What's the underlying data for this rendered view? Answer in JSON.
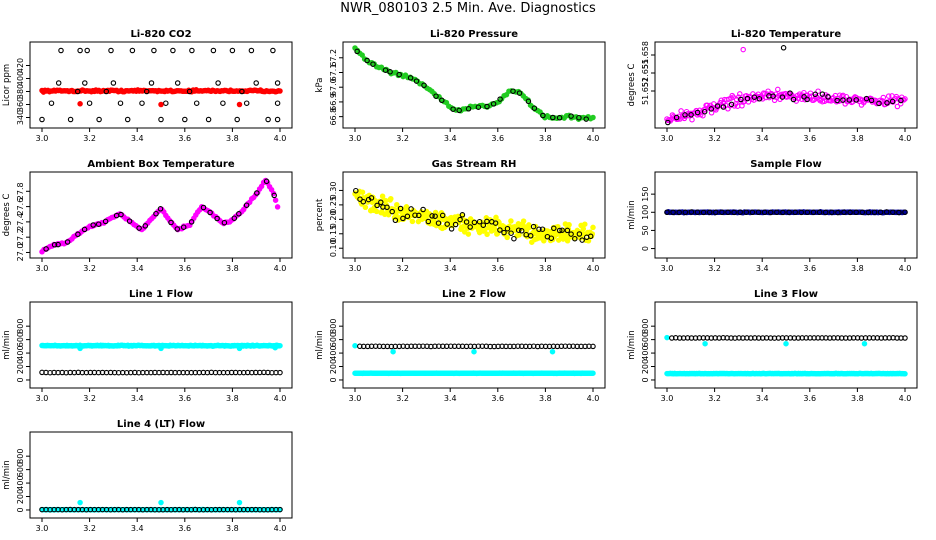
{
  "page": {
    "title": "NWR_080103  2.5 Min. Ave. Diagnostics"
  },
  "colors": {
    "red": "#ff0000",
    "green": "#22cc22",
    "magenta": "#ff00ff",
    "yellow": "#ffff00",
    "navy": "#000099",
    "cyan": "#00ffff",
    "black": "#000000"
  },
  "chart_data": [
    {
      "id": "co2",
      "type": "scatter",
      "title": "Li-820 CO2",
      "ylabel": "Licor ppm",
      "xlim": [
        3.0,
        4.0
      ],
      "ylim": [
        330,
        450
      ],
      "xticks": [
        "3.0",
        "3.2",
        "3.4",
        "3.6",
        "3.8",
        "4.0"
      ],
      "yticks": [
        "340",
        "360",
        "380",
        "400",
        "420"
      ],
      "series": [
        {
          "color": "red",
          "filled": true,
          "band": {
            "x": [
              3.0,
              4.0
            ],
            "y": 381,
            "spread": 2,
            "n": 160
          }
        },
        {
          "color": "black",
          "filled": false,
          "points": [
            [
              3.0,
              337
            ],
            [
              3.04,
              362
            ],
            [
              3.08,
              443
            ],
            [
              3.07,
              393
            ],
            [
              3.12,
              337
            ],
            [
              3.15,
              380
            ],
            [
              3.16,
              443
            ],
            [
              3.18,
              393
            ],
            [
              3.19,
              443
            ],
            [
              3.2,
              362
            ],
            [
              3.24,
              337
            ],
            [
              3.27,
              380
            ],
            [
              3.29,
              443
            ],
            [
              3.3,
              393
            ],
            [
              3.33,
              362
            ],
            [
              3.36,
              337
            ],
            [
              3.38,
              443
            ],
            [
              3.42,
              362
            ],
            [
              3.44,
              380
            ],
            [
              3.46,
              393
            ],
            [
              3.47,
              443
            ],
            [
              3.5,
              337
            ],
            [
              3.52,
              362
            ],
            [
              3.55,
              443
            ],
            [
              3.57,
              393
            ],
            [
              3.6,
              337
            ],
            [
              3.62,
              380
            ],
            [
              3.63,
              443
            ],
            [
              3.65,
              362
            ],
            [
              3.7,
              337
            ],
            [
              3.72,
              443
            ],
            [
              3.74,
              393
            ],
            [
              3.76,
              362
            ],
            [
              3.8,
              443
            ],
            [
              3.82,
              337
            ],
            [
              3.84,
              380
            ],
            [
              3.86,
              362
            ],
            [
              3.88,
              443
            ],
            [
              3.9,
              393
            ],
            [
              3.95,
              337
            ],
            [
              3.97,
              443
            ],
            [
              3.99,
              393
            ],
            [
              3.99,
              362
            ],
            [
              3.99,
              337
            ]
          ]
        },
        {
          "color": "red",
          "filled": true,
          "points": [
            [
              3.16,
              361
            ],
            [
              3.5,
              360
            ],
            [
              3.83,
              360
            ]
          ]
        }
      ]
    },
    {
      "id": "pressure",
      "type": "scatter",
      "title": "Li-820 Pressure",
      "ylabel": "kPa",
      "xlim": [
        3.0,
        4.0
      ],
      "ylim": [
        66.75,
        67.28
      ],
      "xticks": [
        "3.0",
        "3.2",
        "3.4",
        "3.6",
        "3.8",
        "4.0"
      ],
      "yticks": [
        "66.8",
        "66.9",
        "67.0",
        "67.1",
        "67.2"
      ],
      "series": [
        {
          "color": "green",
          "filled": true,
          "jitter": 0.015,
          "density": 10,
          "curve": [
            [
              3.0,
              67.26
            ],
            [
              3.05,
              67.18
            ],
            [
              3.1,
              67.14
            ],
            [
              3.15,
              67.1
            ],
            [
              3.2,
              67.08
            ],
            [
              3.25,
              67.05
            ],
            [
              3.3,
              67.0
            ],
            [
              3.35,
              66.93
            ],
            [
              3.4,
              66.86
            ],
            [
              3.45,
              66.84
            ],
            [
              3.5,
              66.87
            ],
            [
              3.55,
              66.87
            ],
            [
              3.6,
              66.9
            ],
            [
              3.65,
              66.98
            ],
            [
              3.7,
              66.96
            ],
            [
              3.75,
              66.86
            ],
            [
              3.8,
              66.8
            ],
            [
              3.85,
              66.79
            ],
            [
              3.9,
              66.8
            ],
            [
              3.95,
              66.79
            ],
            [
              4.0,
              66.79
            ]
          ]
        },
        {
          "color": "black",
          "filled": false,
          "from": 0,
          "sample": 28,
          "jitter": 0.01
        }
      ]
    },
    {
      "id": "temperature",
      "type": "scatter",
      "title": "Li-820 Temperature",
      "ylabel": "degrees C",
      "xlim": [
        3.0,
        4.0
      ],
      "ylim": [
        51.6465,
        51.6595
      ],
      "xticks": [
        "3.0",
        "3.2",
        "3.4",
        "3.6",
        "3.8",
        "4.0"
      ],
      "yticks": [
        "51.652",
        "51.655",
        "51.658"
      ],
      "series": [
        {
          "color": "magenta",
          "filled": false,
          "jitter": 0.0013,
          "density": 22,
          "curve": [
            [
              3.0,
              51.6472
            ],
            [
              3.1,
              51.6482
            ],
            [
              3.2,
              51.6492
            ],
            [
              3.3,
              51.6505
            ],
            [
              3.4,
              51.651
            ],
            [
              3.5,
              51.6512
            ],
            [
              3.6,
              51.651
            ],
            [
              3.7,
              51.6508
            ],
            [
              3.8,
              51.6505
            ],
            [
              3.9,
              51.6502
            ],
            [
              4.0,
              51.6505
            ]
          ]
        },
        {
          "color": "black",
          "filled": false,
          "from": 0,
          "sample": 34,
          "jitter": 0.0009
        },
        {
          "color": "black",
          "filled": false,
          "points": [
            [
              3.49,
              51.6592
            ]
          ]
        },
        {
          "color": "magenta",
          "filled": false,
          "points": [
            [
              3.32,
              51.6589
            ]
          ]
        }
      ]
    },
    {
      "id": "ambient",
      "type": "scatter",
      "title": "Ambient Box Temperature",
      "ylabel": "degrees C",
      "xlim": [
        3.0,
        4.0
      ],
      "ylim": [
        26.98,
        28.0
      ],
      "xticks": [
        "3.0",
        "3.2",
        "3.4",
        "3.6",
        "3.8",
        "4.0"
      ],
      "yticks": [
        "27.0",
        "27.2",
        "27.4",
        "27.6",
        "27.8"
      ],
      "series": [
        {
          "color": "magenta",
          "filled": true,
          "jitter": 0.015,
          "density": 12,
          "curve": [
            [
              3.0,
              27.02
            ],
            [
              3.05,
              27.1
            ],
            [
              3.1,
              27.12
            ],
            [
              3.15,
              27.24
            ],
            [
              3.2,
              27.34
            ],
            [
              3.25,
              27.38
            ],
            [
              3.3,
              27.46
            ],
            [
              3.33,
              27.5
            ],
            [
              3.38,
              27.38
            ],
            [
              3.42,
              27.3
            ],
            [
              3.46,
              27.44
            ],
            [
              3.5,
              27.58
            ],
            [
              3.53,
              27.44
            ],
            [
              3.57,
              27.3
            ],
            [
              3.62,
              27.36
            ],
            [
              3.67,
              27.6
            ],
            [
              3.71,
              27.52
            ],
            [
              3.76,
              27.38
            ],
            [
              3.8,
              27.42
            ],
            [
              3.85,
              27.58
            ],
            [
              3.9,
              27.76
            ],
            [
              3.94,
              27.95
            ],
            [
              3.97,
              27.8
            ],
            [
              3.99,
              27.6
            ]
          ]
        },
        {
          "color": "black",
          "filled": false,
          "from": 0,
          "sample": 30,
          "jitter": 0.01
        }
      ]
    },
    {
      "id": "rh",
      "type": "scatter",
      "title": "Gas Stream RH",
      "ylabel": "percent",
      "xlim": [
        3.0,
        4.0
      ],
      "ylim": [
        0.08,
        0.35
      ],
      "xticks": [
        "3.0",
        "3.2",
        "3.4",
        "3.6",
        "3.8",
        "4.0"
      ],
      "yticks": [
        "0.10",
        "0.15",
        "0.20",
        "0.25",
        "0.30"
      ],
      "series": [
        {
          "color": "yellow",
          "filled": true,
          "jitter": 0.045,
          "density": 32,
          "curve": [
            [
              3.0,
              0.28
            ],
            [
              3.1,
              0.25
            ],
            [
              3.2,
              0.22
            ],
            [
              3.3,
              0.21
            ],
            [
              3.4,
              0.19
            ],
            [
              3.5,
              0.18
            ],
            [
              3.6,
              0.17
            ],
            [
              3.7,
              0.16
            ],
            [
              3.8,
              0.15
            ],
            [
              3.9,
              0.15
            ],
            [
              4.0,
              0.14
            ]
          ]
        },
        {
          "color": "black",
          "filled": false,
          "from": 0,
          "sample": 60,
          "jitter": 0.04
        }
      ]
    },
    {
      "id": "sample_flow",
      "type": "scatter",
      "title": "Sample Flow",
      "ylabel": "ml/min",
      "xlim": [
        3.0,
        4.0
      ],
      "ylim": [
        -15,
        200
      ],
      "xticks": [
        "3.0",
        "3.2",
        "3.4",
        "3.6",
        "3.8",
        "4.0"
      ],
      "yticks": [
        "0",
        "50",
        "100",
        "150"
      ],
      "series": [
        {
          "color": "navy",
          "filled": true,
          "band": {
            "x": [
              3.0,
              4.0
            ],
            "y": 100,
            "spread": 1.5,
            "n": 170
          }
        },
        {
          "color": "black",
          "filled": false,
          "band": {
            "x": [
              3.0,
              4.0
            ],
            "y": 100,
            "spread": 1,
            "n": 40
          }
        }
      ]
    },
    {
      "id": "line1",
      "type": "scatter",
      "title": "Line 1 Flow",
      "ylabel": "ml/min",
      "xlim": [
        3.0,
        4.0
      ],
      "ylim": [
        -60,
        1100
      ],
      "xticks": [
        "3.0",
        "3.2",
        "3.4",
        "3.6",
        "3.8",
        "4.0"
      ],
      "yticks": [
        "0",
        "200",
        "400",
        "600",
        "800"
      ],
      "series": [
        {
          "color": "cyan",
          "filled": true,
          "band": {
            "x": [
              3.0,
              4.0
            ],
            "y": 510,
            "spread": 10,
            "n": 220
          },
          "points": [
            [
              3.16,
              470
            ],
            [
              3.5,
              470
            ],
            [
              3.83,
              470
            ],
            [
              3.98,
              480
            ]
          ]
        },
        {
          "color": "black",
          "filled": false,
          "band": {
            "x": [
              3.0,
              4.0
            ],
            "y": 110,
            "spread": 3,
            "n": 60
          }
        }
      ]
    },
    {
      "id": "line2",
      "type": "scatter",
      "title": "Line 2 Flow",
      "ylabel": "ml/min",
      "xlim": [
        3.0,
        4.0
      ],
      "ylim": [
        -60,
        1100
      ],
      "xticks": [
        "3.0",
        "3.2",
        "3.4",
        "3.6",
        "3.8",
        "4.0"
      ],
      "yticks": [
        "0",
        "200",
        "400",
        "600",
        "800"
      ],
      "series": [
        {
          "color": "cyan",
          "filled": true,
          "band": {
            "x": [
              3.0,
              4.0
            ],
            "y": 100,
            "spread": 3,
            "n": 220
          },
          "points": [
            [
              3.0,
              510
            ],
            [
              3.16,
              420
            ],
            [
              3.5,
              420
            ],
            [
              3.83,
              420
            ]
          ]
        },
        {
          "color": "black",
          "filled": false,
          "band": {
            "x": [
              3.02,
              4.0
            ],
            "y": 500,
            "spread": 3,
            "n": 60
          }
        }
      ]
    },
    {
      "id": "line3",
      "type": "scatter",
      "title": "Line 3 Flow",
      "ylabel": "ml/min",
      "xlim": [
        3.0,
        4.0
      ],
      "ylim": [
        -60,
        1100
      ],
      "xticks": [
        "3.0",
        "3.2",
        "3.4",
        "3.6",
        "3.8",
        "4.0"
      ],
      "yticks": [
        "0",
        "200",
        "400",
        "600",
        "800"
      ],
      "series": [
        {
          "color": "cyan",
          "filled": true,
          "band": {
            "x": [
              3.0,
              4.0
            ],
            "y": 95,
            "spread": 4,
            "n": 220
          },
          "points": [
            [
              3.0,
              630
            ],
            [
              3.16,
              540
            ],
            [
              3.5,
              540
            ],
            [
              3.83,
              540
            ]
          ]
        },
        {
          "color": "black",
          "filled": false,
          "band": {
            "x": [
              3.02,
              4.0
            ],
            "y": 625,
            "spread": 3,
            "n": 60
          }
        }
      ]
    },
    {
      "id": "line4",
      "type": "scatter",
      "title": "Line 4 (LT) Flow",
      "ylabel": "ml/min",
      "xlim": [
        3.0,
        4.0
      ],
      "ylim": [
        -60,
        1100
      ],
      "xticks": [
        "3.0",
        "3.2",
        "3.4",
        "3.6",
        "3.8",
        "4.0"
      ],
      "yticks": [
        "0",
        "200",
        "400",
        "600",
        "800"
      ],
      "series": [
        {
          "color": "cyan",
          "filled": true,
          "band": {
            "x": [
              3.0,
              4.0
            ],
            "y": 5,
            "spread": 2,
            "n": 200
          },
          "points": [
            [
              3.16,
              110
            ],
            [
              3.5,
              110
            ],
            [
              3.83,
              110
            ]
          ]
        },
        {
          "color": "black",
          "filled": false,
          "band": {
            "x": [
              3.0,
              4.0
            ],
            "y": 5,
            "spread": 2,
            "n": 60
          }
        }
      ]
    }
  ]
}
